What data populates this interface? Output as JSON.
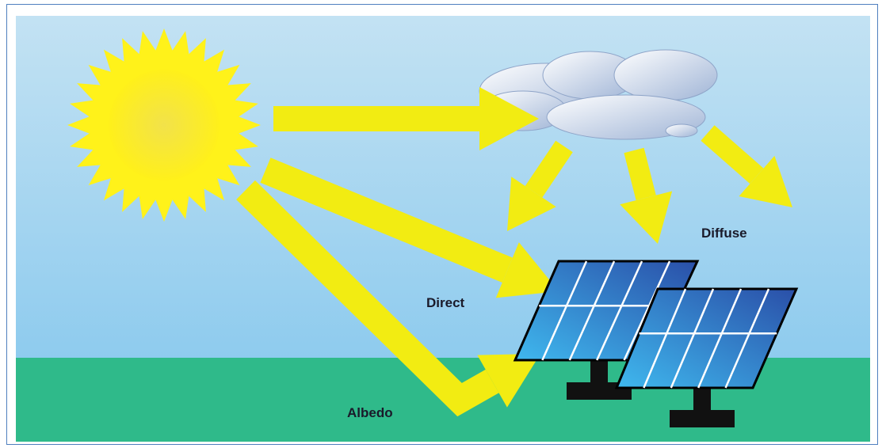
{
  "labels": {
    "diffuse": "Diffuse",
    "direct": "Direct",
    "albedo": "Albedo"
  }
}
